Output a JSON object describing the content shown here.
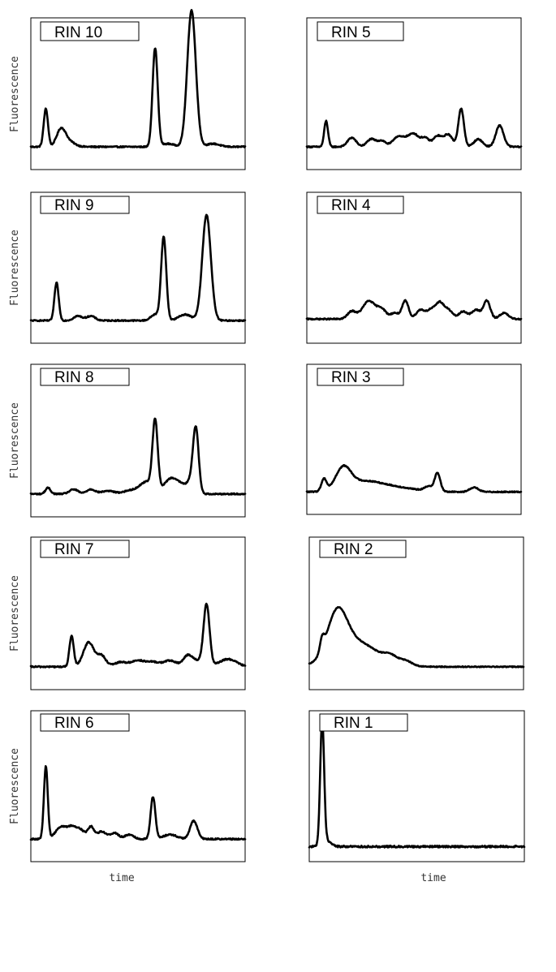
{
  "chart_data": {
    "type": "line",
    "layout": "grid of 10 electropherograms (5 rows x 2 columns)",
    "ylabel": "Fluorescence",
    "xlabel": "time",
    "xlim": [
      0,
      100
    ],
    "ylim": [
      0,
      100
    ],
    "grid": false,
    "panels": [
      {
        "label": "RIN 10",
        "baseline": 15,
        "noise": 0.4,
        "peaks": [
          [
            7,
            1.0,
            25
          ],
          [
            14,
            2.0,
            10
          ],
          [
            17,
            3,
            4
          ],
          [
            58,
            1.2,
            65
          ],
          [
            64,
            3,
            2
          ],
          [
            75,
            2.0,
            90
          ],
          [
            85,
            3,
            2
          ]
        ]
      },
      {
        "label": "RIN 5",
        "baseline": 15,
        "noise": 0.4,
        "peaks": [
          [
            9,
            0.9,
            17
          ],
          [
            21,
            2,
            6
          ],
          [
            30,
            2,
            5
          ],
          [
            35,
            2,
            4
          ],
          [
            42,
            2,
            6
          ],
          [
            46,
            2,
            5
          ],
          [
            50,
            2,
            8
          ],
          [
            55,
            2,
            6
          ],
          [
            61,
            2,
            7
          ],
          [
            66,
            2,
            8
          ],
          [
            72,
            1.3,
            25
          ],
          [
            80,
            2,
            5
          ],
          [
            90,
            1.8,
            14
          ]
        ]
      },
      {
        "label": "RIN 9",
        "baseline": 15,
        "noise": 0.4,
        "peaks": [
          [
            12,
            1.0,
            25
          ],
          [
            22,
            2,
            3
          ],
          [
            28,
            2,
            3
          ],
          [
            58,
            2,
            4
          ],
          [
            62,
            1.2,
            55
          ],
          [
            72,
            3,
            4
          ],
          [
            82,
            2.0,
            70
          ]
        ]
      },
      {
        "label": "RIN 4",
        "baseline": 16,
        "noise": 0.4,
        "peaks": [
          [
            21,
            2,
            5
          ],
          [
            29,
            3,
            12
          ],
          [
            35,
            2,
            6
          ],
          [
            41,
            2,
            4
          ],
          [
            46,
            1.5,
            12
          ],
          [
            53,
            2,
            6
          ],
          [
            58,
            2,
            6
          ],
          [
            62,
            1.8,
            10
          ],
          [
            66,
            2,
            6
          ],
          [
            73,
            2,
            5
          ],
          [
            79,
            2,
            6
          ],
          [
            84,
            1.6,
            12
          ],
          [
            92,
            2,
            4
          ]
        ]
      },
      {
        "label": "RIN 8",
        "baseline": 15,
        "noise": 0.4,
        "peaks": [
          [
            8,
            1.2,
            4
          ],
          [
            20,
            2,
            3
          ],
          [
            28,
            2,
            3
          ],
          [
            36,
            3,
            2
          ],
          [
            46,
            3,
            2
          ],
          [
            52,
            3,
            3
          ],
          [
            55,
            3,
            6
          ],
          [
            58,
            1.2,
            45
          ],
          [
            65,
            3,
            9
          ],
          [
            70,
            3,
            5
          ],
          [
            75,
            2,
            7
          ],
          [
            77,
            1.3,
            40
          ]
        ]
      },
      {
        "label": "RIN 3",
        "baseline": 15,
        "noise": 0.35,
        "peaks": [
          [
            8,
            1.2,
            8
          ],
          [
            17,
            3.5,
            14
          ],
          [
            26,
            8,
            6
          ],
          [
            40,
            10,
            3
          ],
          [
            57,
            2,
            3
          ],
          [
            61,
            1.3,
            12
          ],
          [
            78,
            2,
            3
          ]
        ]
      },
      {
        "label": "RIN 7",
        "baseline": 15,
        "noise": 0.45,
        "peaks": [
          [
            19,
            1.0,
            20
          ],
          [
            27,
            2.5,
            16
          ],
          [
            33,
            2,
            7
          ],
          [
            42,
            3,
            3
          ],
          [
            50,
            3,
            4
          ],
          [
            57,
            3,
            3
          ],
          [
            65,
            3,
            4
          ],
          [
            73,
            2,
            6
          ],
          [
            77,
            3,
            4
          ],
          [
            82,
            1.4,
            40
          ],
          [
            92,
            4,
            5
          ]
        ]
      },
      {
        "label": "RIN 2",
        "baseline": 15,
        "noise": 0.3,
        "peaks": [
          [
            6,
            1.0,
            8
          ],
          [
            13,
            4.5,
            28
          ],
          [
            22,
            10,
            16
          ],
          [
            38,
            3,
            4
          ],
          [
            45,
            3,
            3
          ]
        ]
      },
      {
        "label": "RIN 6",
        "baseline": 15,
        "noise": 0.45,
        "peaks": [
          [
            7,
            0.9,
            48
          ],
          [
            14,
            2.5,
            8
          ],
          [
            19,
            2,
            7
          ],
          [
            23,
            2,
            6
          ],
          [
            28,
            1.5,
            8
          ],
          [
            33,
            2,
            5
          ],
          [
            39,
            2,
            4
          ],
          [
            46,
            2,
            3
          ],
          [
            57,
            1.1,
            28
          ],
          [
            65,
            3,
            3
          ],
          [
            76,
            1.7,
            12
          ]
        ]
      },
      {
        "label": "RIN 1",
        "baseline": 10,
        "noise": 0.6,
        "peaks": [
          [
            6,
            0.9,
            82
          ],
          [
            8,
            2,
            4
          ]
        ]
      }
    ]
  }
}
